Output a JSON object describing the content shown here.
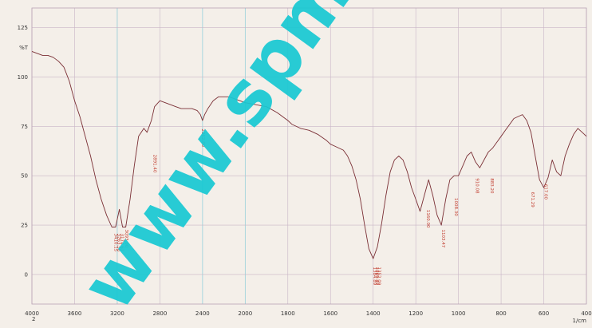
{
  "watermark": "www.spm.c",
  "chart_data": {
    "type": "line",
    "title": "",
    "xlabel": "1/cm",
    "ylabel": "%T",
    "xlim": [
      4000,
      400
    ],
    "ylim": [
      -15,
      135
    ],
    "x_reversed": true,
    "grid": true,
    "x_ticks": [
      "4000",
      "3600",
      "3200",
      "2800",
      "2400",
      "2000",
      "1800",
      "1600",
      "1400",
      "1200",
      "1000",
      "800",
      "600",
      "400"
    ],
    "y_ticks": [
      {
        "value": 125,
        "label": "125"
      },
      {
        "value": 115,
        "label": "%T"
      },
      {
        "value": 100,
        "label": "100"
      },
      {
        "value": 75,
        "label": "75"
      },
      {
        "value": 50,
        "label": "50"
      },
      {
        "value": 25,
        "label": "25"
      },
      {
        "value": 0,
        "label": "0"
      }
    ],
    "corner_labels": {
      "left": "2",
      "right": "1/cm"
    },
    "series": [
      {
        "color": "#7a2f35",
        "x": [
          4000,
          3950,
          3900,
          3850,
          3800,
          3750,
          3700,
          3650,
          3600,
          3550,
          3500,
          3450,
          3400,
          3350,
          3300,
          3250,
          3215,
          3180,
          3150,
          3120,
          3080,
          3040,
          3000,
          2950,
          2920,
          2880,
          2850,
          2800,
          2750,
          2700,
          2650,
          2600,
          2550,
          2500,
          2450,
          2420,
          2400,
          2380,
          2350,
          2300,
          2250,
          2200,
          2150,
          2100,
          2050,
          2000,
          1950,
          1900,
          1850,
          1800,
          1780,
          1760,
          1740,
          1700,
          1660,
          1620,
          1600,
          1580,
          1560,
          1540,
          1520,
          1500,
          1480,
          1460,
          1440,
          1420,
          1400,
          1380,
          1360,
          1340,
          1320,
          1300,
          1280,
          1260,
          1240,
          1220,
          1200,
          1180,
          1160,
          1140,
          1120,
          1100,
          1080,
          1060,
          1040,
          1020,
          1000,
          980,
          960,
          940,
          920,
          900,
          880,
          860,
          840,
          820,
          800,
          780,
          760,
          740,
          720,
          700,
          680,
          660,
          640,
          620,
          600,
          580,
          560,
          540,
          520,
          500,
          480,
          460,
          440,
          420,
          400
        ],
        "y": [
          113,
          112,
          111,
          111,
          110,
          108,
          105,
          98,
          88,
          80,
          70,
          60,
          48,
          38,
          30,
          24,
          24,
          33,
          24,
          24,
          38,
          55,
          70,
          74,
          72,
          78,
          85,
          88,
          87,
          86,
          85,
          84,
          84,
          84,
          83,
          81,
          78,
          81,
          84,
          88,
          90,
          90,
          90,
          89,
          88,
          87,
          86,
          85,
          82,
          78,
          76,
          75,
          74,
          73,
          71,
          68,
          66,
          65,
          64,
          63,
          60,
          55,
          48,
          38,
          25,
          13,
          8,
          14,
          26,
          40,
          52,
          58,
          60,
          58,
          52,
          44,
          38,
          32,
          40,
          48,
          40,
          30,
          25,
          38,
          48,
          50,
          50,
          55,
          60,
          62,
          57,
          54,
          58,
          62,
          64,
          67,
          70,
          73,
          76,
          79,
          80,
          81,
          78,
          72,
          60,
          48,
          44,
          49,
          58,
          52,
          50,
          60,
          66,
          71,
          74,
          72,
          70
        ]
      }
    ],
    "annotations": [
      {
        "x": 3225,
        "y": 22,
        "text": "3410.15"
      },
      {
        "x": 3195,
        "y": 22,
        "text": "3263.56"
      },
      {
        "x": 3165,
        "y": 22,
        "text": "3174.61"
      },
      {
        "x": 3125,
        "y": 24,
        "text": "3093.00"
      },
      {
        "x": 2860,
        "y": 62,
        "text": "2891.40"
      },
      {
        "x": 2405,
        "y": 75,
        "text": "2362.80"
      },
      {
        "x": 1398,
        "y": 5,
        "text": "1384.89"
      },
      {
        "x": 1388,
        "y": 5,
        "text": "1369.49"
      },
      {
        "x": 1378,
        "y": 5,
        "text": "1352.09"
      },
      {
        "x": 1148,
        "y": 34,
        "text": "1160.00"
      },
      {
        "x": 1078,
        "y": 24,
        "text": "1103.47"
      },
      {
        "x": 1018,
        "y": 40,
        "text": "1008.30"
      },
      {
        "x": 918,
        "y": 50,
        "text": "910.08"
      },
      {
        "x": 848,
        "y": 50,
        "text": "883.20"
      },
      {
        "x": 658,
        "y": 43,
        "text": "671.29"
      },
      {
        "x": 596,
        "y": 47,
        "text": "617.00"
      }
    ]
  }
}
